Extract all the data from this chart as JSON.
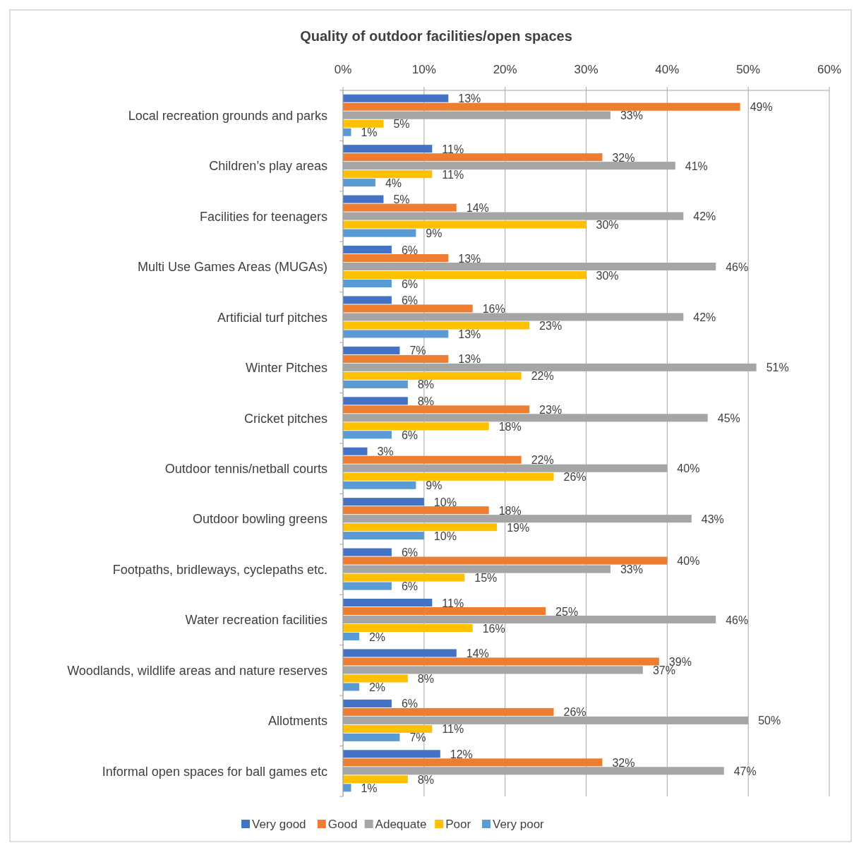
{
  "chart_data": {
    "type": "bar",
    "orientation": "horizontal",
    "title": "Quality of outdoor facilities/open spaces",
    "categories": [
      "Local recreation grounds and parks",
      "Children’s play areas",
      "Facilities for teenagers",
      "Multi Use Games Areas (MUGAs)",
      "Artificial turf pitches",
      "Winter Pitches",
      "Cricket pitches",
      "Outdoor tennis/netball courts",
      "Outdoor bowling greens",
      "Footpaths, bridleways, cyclepaths etc.",
      "Water recreation facilities",
      "Woodlands, wildlife areas and nature reserves",
      "Allotments",
      "Informal open spaces for ball games etc"
    ],
    "series": [
      {
        "name": "Very good",
        "color": "#4472c4",
        "values": [
          13,
          11,
          5,
          6,
          6,
          7,
          8,
          3,
          10,
          6,
          11,
          14,
          6,
          12
        ],
        "value_labels": [
          "13%",
          "11%",
          "5%",
          "6%",
          "6%",
          "7%",
          "8%",
          "3%",
          "10%",
          "6%",
          "11%",
          "14%",
          "6%",
          "12%"
        ]
      },
      {
        "name": "Good",
        "color": "#ed7d31",
        "values": [
          49,
          32,
          14,
          13,
          16,
          13,
          23,
          22,
          18,
          40,
          25,
          39,
          26,
          32
        ],
        "value_labels": [
          "49%",
          "32%",
          "14%",
          "13%",
          "16%",
          "13%",
          "23%",
          "22%",
          "18%",
          "40%",
          "25%",
          "39%",
          "26%",
          "32%"
        ]
      },
      {
        "name": "Adequate",
        "color": "#a5a5a5",
        "values": [
          33,
          41,
          42,
          46,
          42,
          51,
          45,
          40,
          43,
          33,
          46,
          37,
          50,
          47
        ],
        "value_labels": [
          "33%",
          "41%",
          "42%",
          "46%",
          "42%",
          "51%",
          "45%",
          "40%",
          "43%",
          "33%",
          "46%",
          "37%",
          "50%",
          "47%"
        ]
      },
      {
        "name": "Poor",
        "color": "#ffc000",
        "values": [
          5,
          11,
          30,
          30,
          23,
          22,
          18,
          26,
          19,
          15,
          16,
          8,
          11,
          8
        ],
        "value_labels": [
          "5%",
          "11%",
          "30%",
          "30%",
          "23%",
          "22%",
          "18%",
          "26%",
          "19%",
          "15%",
          "16%",
          "8%",
          "11%",
          "8%"
        ]
      },
      {
        "name": "Very poor",
        "color": "#5b9bd5",
        "values": [
          1,
          4,
          9,
          6,
          13,
          8,
          6,
          9,
          10,
          6,
          2,
          2,
          7,
          1
        ],
        "value_labels": [
          "1%",
          "4%",
          "9%",
          "6%",
          "13%",
          "8%",
          "6%",
          "9%",
          "10%",
          "6%",
          "2%",
          "2%",
          "7%",
          "1%"
        ]
      }
    ],
    "xlim": [
      0,
      60
    ],
    "xticks": [
      {
        "value": 0,
        "label": "0%"
      },
      {
        "value": 10,
        "label": "10%"
      },
      {
        "value": 20,
        "label": "20%"
      },
      {
        "value": 30,
        "label": "30%"
      },
      {
        "value": 40,
        "label": "40%"
      },
      {
        "value": 50,
        "label": "50%"
      },
      {
        "value": 60,
        "label": "60%"
      }
    ],
    "grid": "x",
    "legend": "bottom"
  }
}
